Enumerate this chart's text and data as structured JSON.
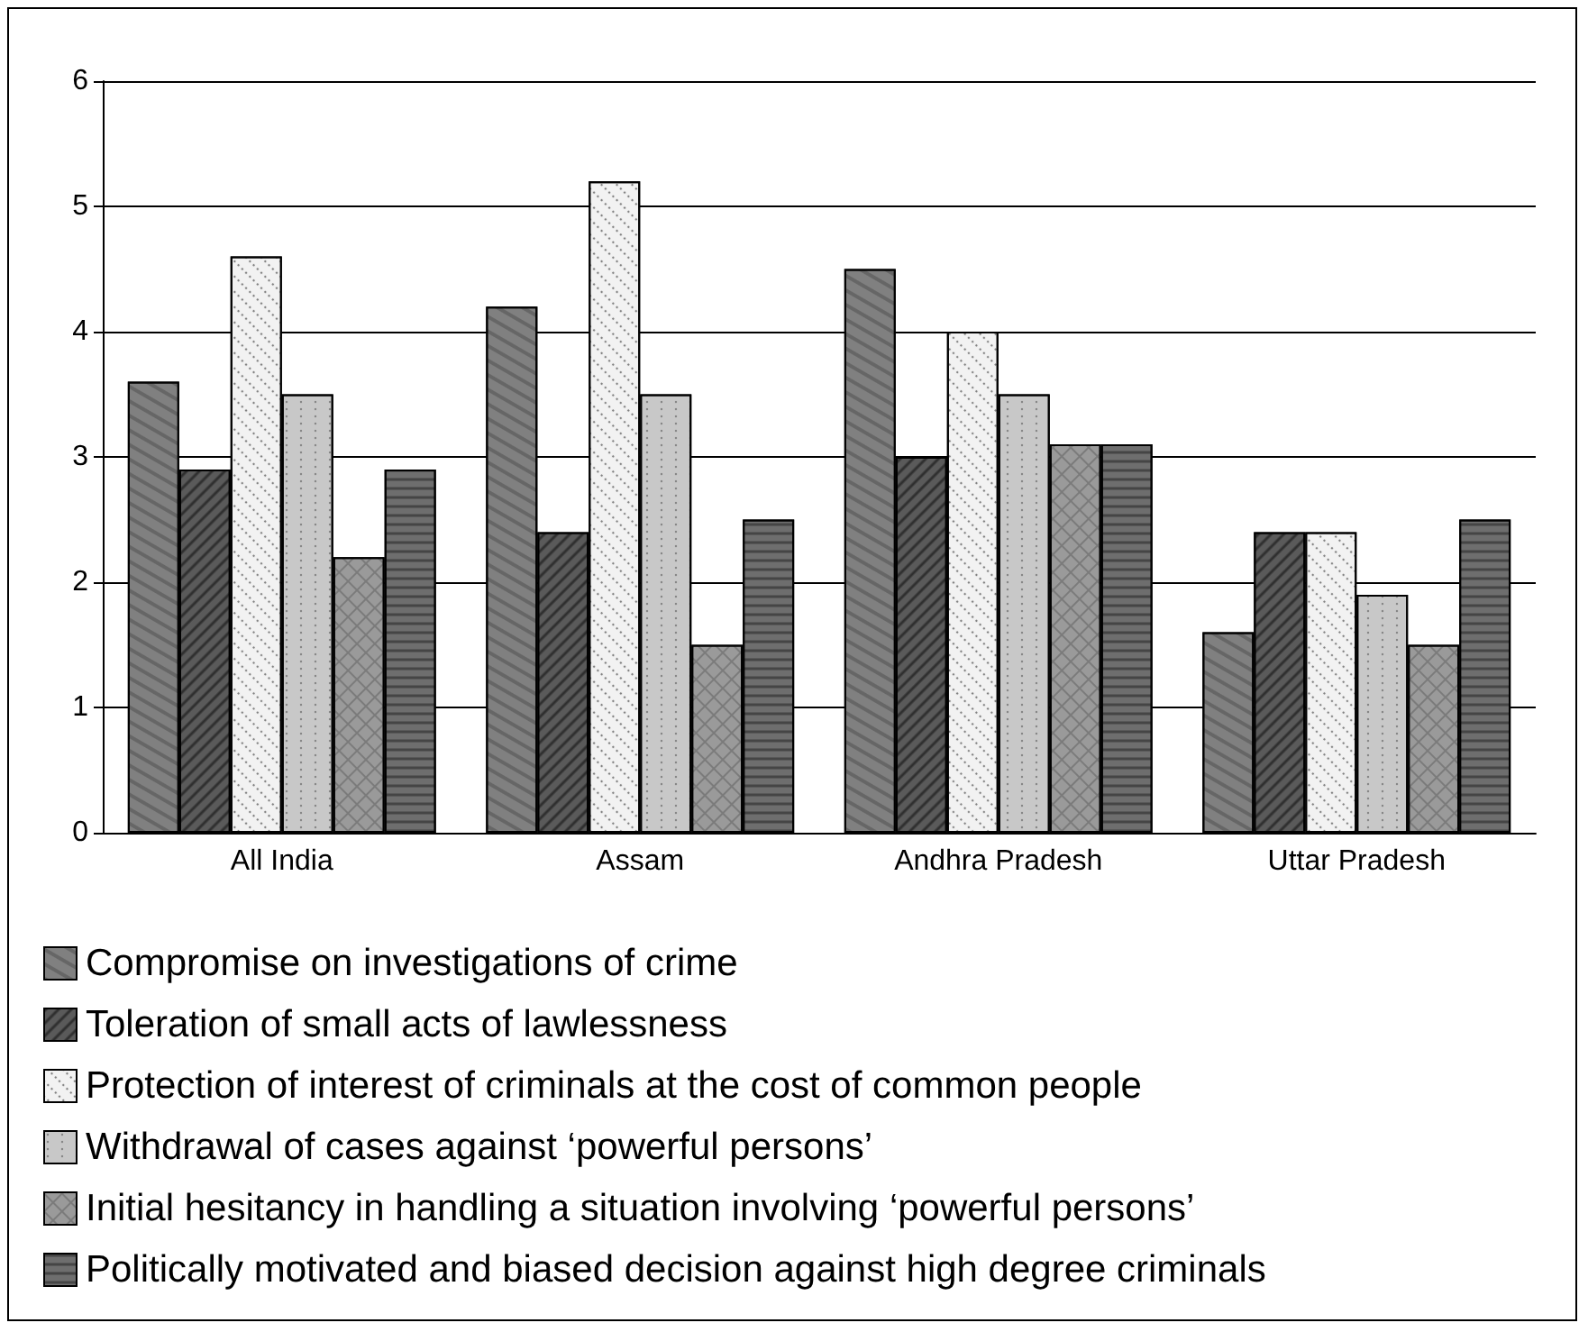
{
  "chart_data": {
    "type": "bar",
    "categories": [
      "All India",
      "Assam",
      "Andhra Pradesh",
      "Uttar Pradesh"
    ],
    "series": [
      {
        "name": "Compromise on investigations of crime",
        "color": "#808080",
        "values": [
          3.6,
          4.2,
          4.5,
          1.6
        ]
      },
      {
        "name": "Toleration of small acts of lawlessness",
        "color": "#5a5a5a",
        "values": [
          2.9,
          2.4,
          3.0,
          2.4
        ]
      },
      {
        "name": "Protection of interest of criminals at the cost of common people",
        "color": "#f2f2f2",
        "values": [
          4.6,
          5.2,
          4.0,
          2.4
        ]
      },
      {
        "name": "Withdrawal of cases against ‘powerful persons’",
        "color": "#c8c8c8",
        "values": [
          3.5,
          3.5,
          3.5,
          1.9
        ]
      },
      {
        "name": "Initial hesitancy in handling a situation involving ‘powerful persons’",
        "color": "#9a9a9a",
        "values": [
          2.2,
          1.5,
          3.1,
          1.5
        ]
      },
      {
        "name": "Politically motivated and biased decision against high degree criminals",
        "color": "#6e6e6e",
        "values": [
          2.9,
          2.5,
          3.1,
          2.5
        ]
      }
    ],
    "ylim": [
      0,
      6
    ],
    "yticks": [
      0,
      1,
      2,
      3,
      4,
      5,
      6
    ],
    "grid": "y",
    "legend": "bottom"
  }
}
